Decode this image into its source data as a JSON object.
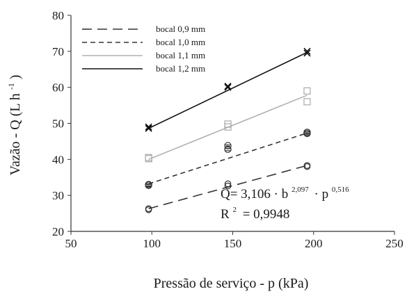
{
  "chart_data": {
    "type": "scatter",
    "xlabel": "Pressão de serviço - p (kPa)",
    "ylabel_main": "Vazão - Q (L h",
    "ylabel_sup": "-1",
    "ylabel_close": ")",
    "xlim": [
      50,
      250
    ],
    "ylim": [
      20,
      80
    ],
    "xticks": [
      "50",
      "100",
      "150",
      "200",
      "250"
    ],
    "yticks": [
      "20",
      "30",
      "40",
      "50",
      "60",
      "70",
      "80"
    ],
    "grid": false,
    "legend_placement": "top-left",
    "series": [
      {
        "name": "bocal 0,9 mm",
        "color": "#333333",
        "dash": "long-dash",
        "marker": "circle",
        "points": [
          [
            98,
            26.0
          ],
          [
            98,
            26.3
          ],
          [
            147,
            32.6
          ],
          [
            147,
            33.2
          ],
          [
            196,
            38.0
          ],
          [
            196,
            38.3
          ]
        ],
        "fit": [
          [
            98,
            26.3
          ],
          [
            196,
            38.3
          ]
        ]
      },
      {
        "name": "bocal 1,0 mm",
        "color": "#333333",
        "dash": "short-dash",
        "marker": "diamond",
        "points": [
          [
            98,
            33.0
          ],
          [
            98,
            32.8
          ],
          [
            147,
            42.8
          ],
          [
            147,
            43.8
          ],
          [
            196,
            47.2
          ],
          [
            196,
            47.5
          ]
        ],
        "fit": [
          [
            98,
            33.2
          ],
          [
            196,
            47.3
          ]
        ]
      },
      {
        "name": "bocal 1,1 mm",
        "color": "#b0b0b0",
        "dash": "solid",
        "marker": "square",
        "points": [
          [
            98,
            40.5
          ],
          [
            98,
            40.2
          ],
          [
            147,
            49.0
          ],
          [
            147,
            49.8
          ],
          [
            196,
            59.0
          ],
          [
            196,
            56.0
          ]
        ],
        "fit": [
          [
            98,
            40.0
          ],
          [
            196,
            57.8
          ]
        ]
      },
      {
        "name": "bocal 1,2 mm",
        "color": "#111111",
        "dash": "solid",
        "marker": "x",
        "points": [
          [
            98,
            49.0
          ],
          [
            98,
            48.6
          ],
          [
            147,
            60.0
          ],
          [
            147,
            60.3
          ],
          [
            196,
            69.5
          ],
          [
            196,
            70.0
          ]
        ],
        "fit": [
          [
            98,
            48.6
          ],
          [
            196,
            69.7
          ]
        ]
      }
    ],
    "annotation": {
      "line1_prefix": "Q= 3,106 · b",
      "line1_exp1": "2,097",
      "line1_mid": "· p",
      "line1_exp2": "0,516",
      "line2_prefix": "R",
      "line2_exp": "2",
      "line2_suffix": "= 0,9948"
    }
  }
}
